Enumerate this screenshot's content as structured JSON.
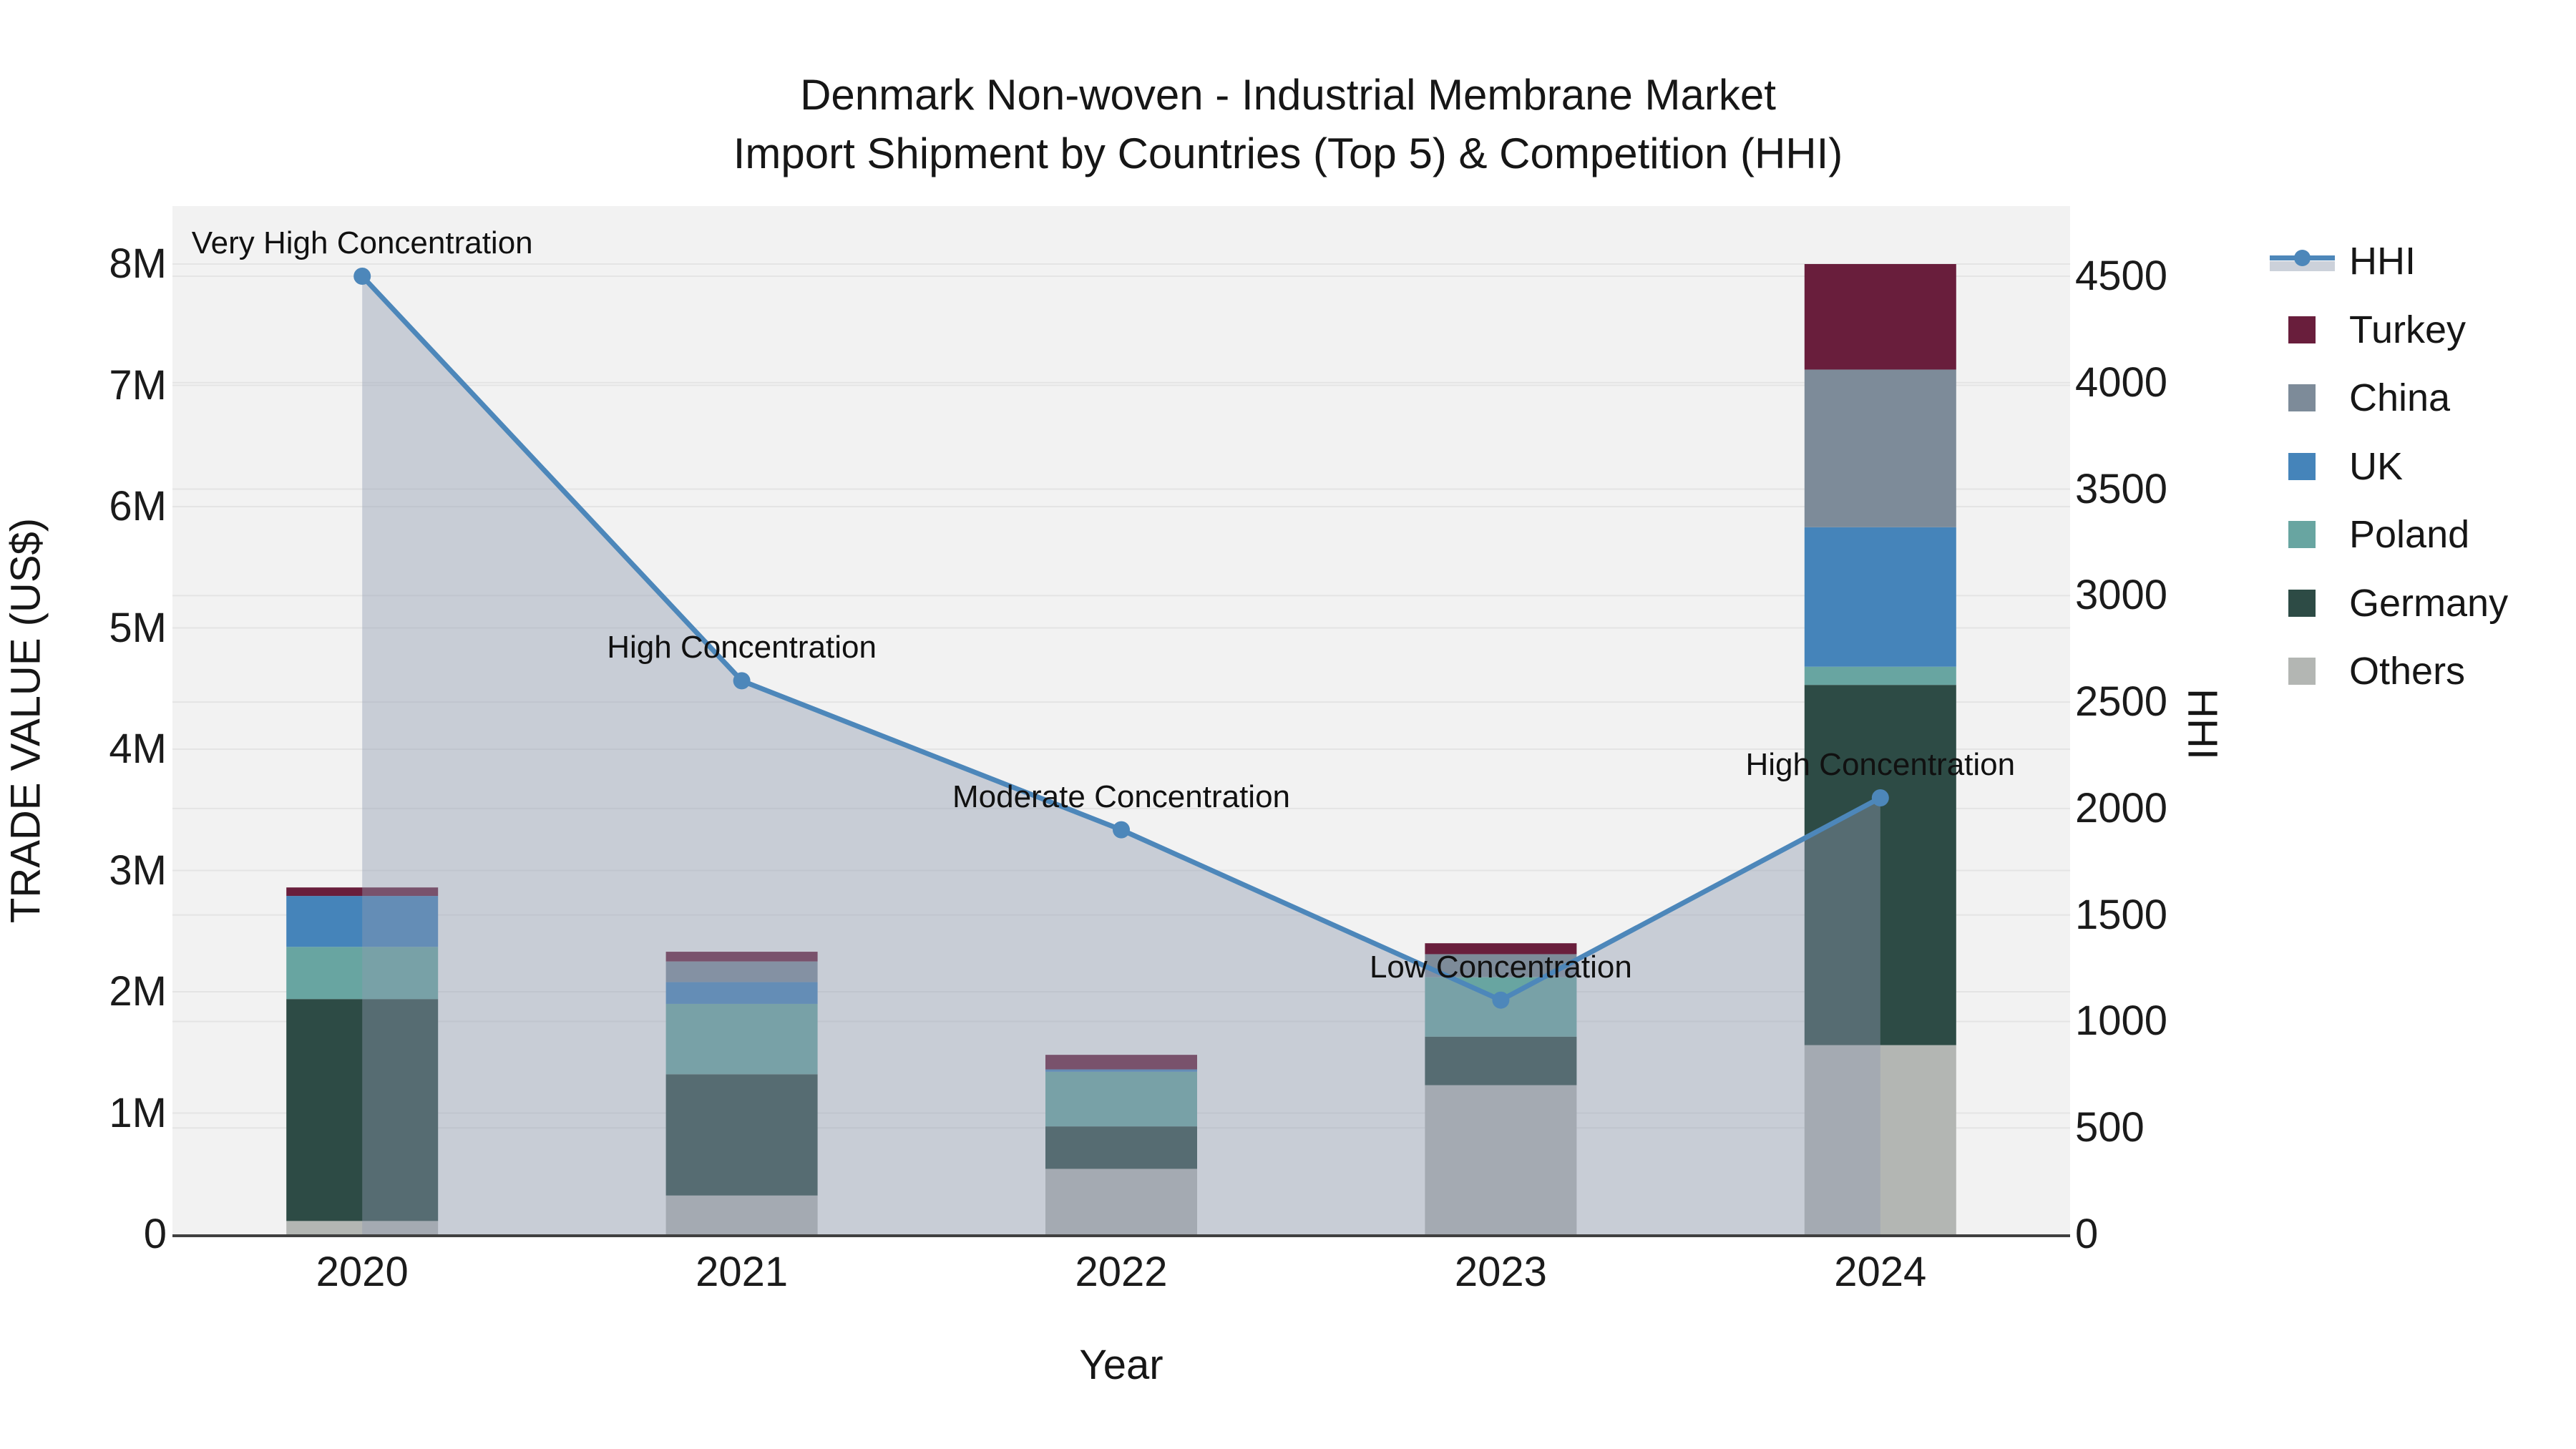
{
  "title": {
    "line1": "Denmark Non-woven - Industrial Membrane Market",
    "line2": "Import Shipment by Countries (Top 5) & Competition (HHI)"
  },
  "chart_data": {
    "type": "bar",
    "subtype": "stacked-bars-with-hhi-line-and-area",
    "categories": [
      "2020",
      "2021",
      "2022",
      "2023",
      "2024"
    ],
    "xlabel": "Year",
    "ylabel_left": "TRADE VALUE (US$)",
    "ylabel_right": "HHI",
    "y_unit_left": "million US$",
    "ylim_left": [
      0,
      8
    ],
    "ylim_right": [
      0,
      4500
    ],
    "yticks_left": [
      "0",
      "1M",
      "2M",
      "3M",
      "4M",
      "5M",
      "6M",
      "7M",
      "8M"
    ],
    "yticks_right": [
      "0",
      "500",
      "1000",
      "1500",
      "2000",
      "2500",
      "3000",
      "3500",
      "4000",
      "4500"
    ],
    "grid": true,
    "legend_position": "right",
    "series": [
      {
        "name": "Others",
        "color": "#b3b6b3",
        "values": [
          0.11,
          0.32,
          0.54,
          1.23,
          1.56
        ]
      },
      {
        "name": "Germany",
        "color": "#2d4b45",
        "values": [
          1.83,
          1.0,
          0.35,
          0.4,
          2.97
        ]
      },
      {
        "name": "Poland",
        "color": "#68a5a1",
        "values": [
          0.43,
          0.58,
          0.45,
          0.49,
          0.15
        ]
      },
      {
        "name": "UK",
        "color": "#4584ba",
        "values": [
          0.42,
          0.18,
          0.02,
          0.0,
          1.15
        ]
      },
      {
        "name": "China",
        "color": "#7d8b99",
        "values": [
          0.0,
          0.17,
          0.0,
          0.19,
          1.3
        ]
      },
      {
        "name": "Turkey",
        "color": "#691e3c",
        "values": [
          0.07,
          0.08,
          0.12,
          0.09,
          0.87
        ]
      }
    ],
    "bar_totals": [
      2.86,
      2.33,
      1.48,
      2.4,
      8.0
    ],
    "line_series": {
      "name": "HHI",
      "color": "#4d87ba",
      "area_fill": "#8e9cb0",
      "values": [
        4500,
        2600,
        1900,
        1100,
        2050
      ]
    },
    "annotations": [
      {
        "category": "2020",
        "text": "Very High Concentration"
      },
      {
        "category": "2021",
        "text": "High Concentration"
      },
      {
        "category": "2022",
        "text": "Moderate Concentration"
      },
      {
        "category": "2023",
        "text": "Low Concentration"
      },
      {
        "category": "2024",
        "text": "High Concentration"
      }
    ],
    "legend_order": [
      "HHI",
      "Turkey",
      "China",
      "UK",
      "Poland",
      "Germany",
      "Others"
    ],
    "colors": {
      "plot_background": "#f2f2f2",
      "gridline": "#e4e4e4",
      "axis_line": "#404040",
      "text": "#1b1b1b"
    }
  }
}
